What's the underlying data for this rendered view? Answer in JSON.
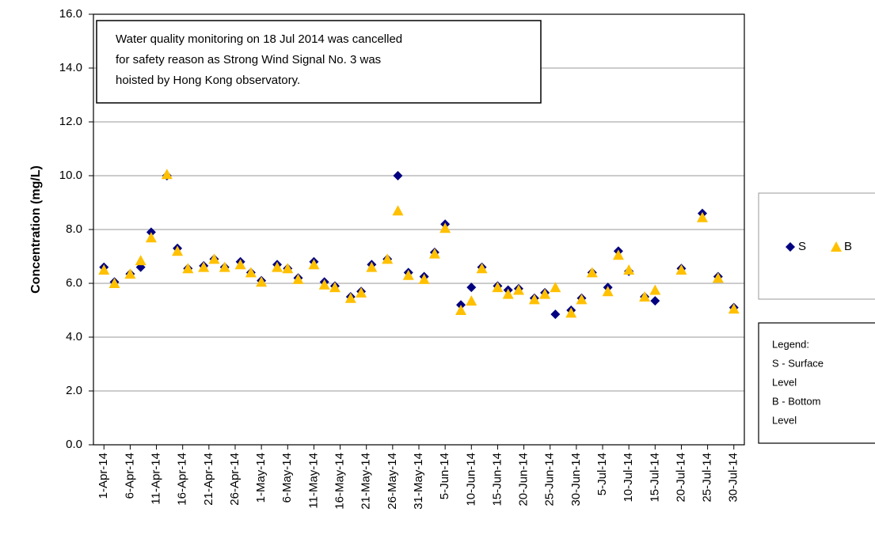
{
  "chart_data": {
    "type": "scatter",
    "y_label": "Concentration (mg/L)",
    "annotation": [
      "Water quality monitoring on 18 Jul 2014 was cancelled",
      "for safety reason as Strong Wind Signal No. 3 was",
      "hoisted by Hong Kong observatory."
    ],
    "note": [
      "Legend:",
      "S - Surface",
      "Level",
      "B - Bottom",
      "Level"
    ],
    "x": [
      "2014-04-01",
      "2014-04-03",
      "2014-04-06",
      "2014-04-08",
      "2014-04-10",
      "2014-04-13",
      "2014-04-15",
      "2014-04-17",
      "2014-04-20",
      "2014-04-22",
      "2014-04-24",
      "2014-04-27",
      "2014-04-29",
      "2014-05-01",
      "2014-05-04",
      "2014-05-06",
      "2014-05-08",
      "2014-05-11",
      "2014-05-13",
      "2014-05-15",
      "2014-05-18",
      "2014-05-20",
      "2014-05-22",
      "2014-05-25",
      "2014-05-27",
      "2014-05-29",
      "2014-06-01",
      "2014-06-03",
      "2014-06-05",
      "2014-06-08",
      "2014-06-10",
      "2014-06-12",
      "2014-06-15",
      "2014-06-17",
      "2014-06-19",
      "2014-06-22",
      "2014-06-24",
      "2014-06-26",
      "2014-06-29",
      "2014-07-01",
      "2014-07-03",
      "2014-07-06",
      "2014-07-08",
      "2014-07-10",
      "2014-07-13",
      "2014-07-15",
      "2014-07-20",
      "2014-07-24",
      "2014-07-27",
      "2014-07-30"
    ],
    "series": [
      {
        "name": "S",
        "color": "#000080",
        "marker": "diamond",
        "values": [
          6.6,
          6.05,
          6.35,
          6.6,
          7.9,
          10.0,
          7.3,
          6.55,
          6.65,
          6.9,
          6.6,
          6.8,
          6.4,
          6.1,
          6.7,
          6.55,
          6.2,
          6.8,
          6.05,
          5.9,
          5.5,
          5.7,
          6.7,
          6.9,
          10.0,
          6.4,
          6.25,
          7.15,
          8.2,
          5.2,
          5.85,
          6.6,
          5.9,
          5.75,
          5.8,
          5.45,
          5.65,
          4.85,
          5.0,
          5.45,
          6.4,
          5.85,
          7.2,
          6.45,
          5.5,
          5.35,
          6.55,
          8.6,
          6.25,
          5.1
        ]
      },
      {
        "name": "B",
        "color": "#FFC000",
        "marker": "triangle",
        "values": [
          6.5,
          6.0,
          6.35,
          6.85,
          7.7,
          10.05,
          7.2,
          6.55,
          6.6,
          6.9,
          6.6,
          6.7,
          6.4,
          6.05,
          6.6,
          6.55,
          6.15,
          6.7,
          5.95,
          5.85,
          5.45,
          5.65,
          6.6,
          6.9,
          8.7,
          6.3,
          6.15,
          7.1,
          8.05,
          5.0,
          5.35,
          6.55,
          5.85,
          5.6,
          5.75,
          5.4,
          5.6,
          5.85,
          4.9,
          5.4,
          6.4,
          5.7,
          7.05,
          6.5,
          5.5,
          5.75,
          6.5,
          8.45,
          6.2,
          5.05
        ]
      }
    ],
    "xlim": [
      "2014-03-30",
      "2014-08-01"
    ],
    "xticks": [
      {
        "value": "2014-04-01",
        "label": "1-Apr-14"
      },
      {
        "value": "2014-04-06",
        "label": "6-Apr-14"
      },
      {
        "value": "2014-04-11",
        "label": "11-Apr-14"
      },
      {
        "value": "2014-04-16",
        "label": "16-Apr-14"
      },
      {
        "value": "2014-04-21",
        "label": "21-Apr-14"
      },
      {
        "value": "2014-04-26",
        "label": "26-Apr-14"
      },
      {
        "value": "2014-05-01",
        "label": "1-May-14"
      },
      {
        "value": "2014-05-06",
        "label": "6-May-14"
      },
      {
        "value": "2014-05-11",
        "label": "11-May-14"
      },
      {
        "value": "2014-05-16",
        "label": "16-May-14"
      },
      {
        "value": "2014-05-21",
        "label": "21-May-14"
      },
      {
        "value": "2014-05-26",
        "label": "26-May-14"
      },
      {
        "value": "2014-05-31",
        "label": "31-May-14"
      },
      {
        "value": "2014-06-05",
        "label": "5-Jun-14"
      },
      {
        "value": "2014-06-10",
        "label": "10-Jun-14"
      },
      {
        "value": "2014-06-15",
        "label": "15-Jun-14"
      },
      {
        "value": "2014-06-20",
        "label": "20-Jun-14"
      },
      {
        "value": "2014-06-25",
        "label": "25-Jun-14"
      },
      {
        "value": "2014-06-30",
        "label": "30-Jun-14"
      },
      {
        "value": "2014-07-05",
        "label": "5-Jul-14"
      },
      {
        "value": "2014-07-10",
        "label": "10-Jul-14"
      },
      {
        "value": "2014-07-15",
        "label": "15-Jul-14"
      },
      {
        "value": "2014-07-20",
        "label": "20-Jul-14"
      },
      {
        "value": "2014-07-25",
        "label": "25-Jul-14"
      },
      {
        "value": "2014-07-30",
        "label": "30-Jul-14"
      }
    ],
    "ylim": [
      0,
      16
    ],
    "yticks": [
      {
        "value": 0,
        "label": "0.0"
      },
      {
        "value": 2,
        "label": "2.0"
      },
      {
        "value": 4,
        "label": "4.0"
      },
      {
        "value": 6,
        "label": "6.0"
      },
      {
        "value": 8,
        "label": "8.0"
      },
      {
        "value": 10,
        "label": "10.0"
      },
      {
        "value": 12,
        "label": "12.0"
      },
      {
        "value": 14,
        "label": "14.0"
      },
      {
        "value": 16,
        "label": "16.0"
      }
    ],
    "grid": true,
    "legend": "right"
  }
}
